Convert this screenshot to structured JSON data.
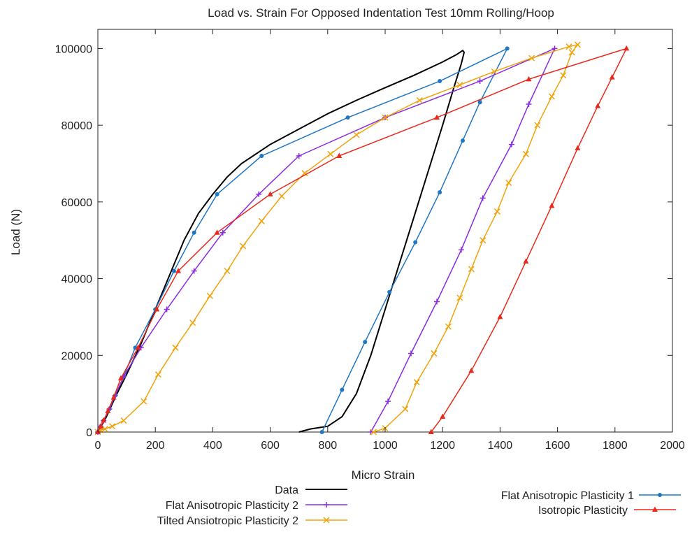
{
  "chart_data": {
    "type": "line",
    "title": "Load vs. Strain For Opposed Indentation Test 10mm Rolling/Hoop",
    "xlabel": "Micro Strain",
    "ylabel": "Load (N)",
    "xlim": [
      0,
      2000
    ],
    "ylim": [
      0,
      105000
    ],
    "xticks": [
      0,
      200,
      400,
      600,
      800,
      1000,
      1200,
      1400,
      1600,
      1800,
      2000
    ],
    "yticks": [
      0,
      20000,
      40000,
      60000,
      80000,
      100000
    ],
    "grid": false,
    "legend_position": "below plot, two columns",
    "series": [
      {
        "name": "Data",
        "color": "#000000",
        "marker": "none",
        "points": [
          [
            0,
            0
          ],
          [
            30,
            4000
          ],
          [
            60,
            9000
          ],
          [
            100,
            15000
          ],
          [
            150,
            23000
          ],
          [
            200,
            32000
          ],
          [
            250,
            41000
          ],
          [
            300,
            50000
          ],
          [
            350,
            57000
          ],
          [
            400,
            62000
          ],
          [
            450,
            66500
          ],
          [
            500,
            70000
          ],
          [
            600,
            75000
          ],
          [
            700,
            79000
          ],
          [
            800,
            83000
          ],
          [
            900,
            86500
          ],
          [
            1000,
            89800
          ],
          [
            1100,
            93000
          ],
          [
            1200,
            96500
          ],
          [
            1250,
            98500
          ],
          [
            1270,
            99500
          ],
          [
            1275,
            99000
          ],
          [
            1265,
            96000
          ],
          [
            1240,
            90000
          ],
          [
            1200,
            80000
          ],
          [
            1150,
            68000
          ],
          [
            1100,
            56000
          ],
          [
            1050,
            44000
          ],
          [
            1000,
            32000
          ],
          [
            950,
            20000
          ],
          [
            900,
            10000
          ],
          [
            850,
            4000
          ],
          [
            800,
            1500
          ],
          [
            740,
            800
          ],
          [
            700,
            0
          ]
        ]
      },
      {
        "name": "Flat Anisotropic Plasticity 1",
        "color": "#1f77c4",
        "marker": "dot",
        "points": [
          [
            0,
            0
          ],
          [
            10,
            1500
          ],
          [
            20,
            3000
          ],
          [
            40,
            6000
          ],
          [
            60,
            9500
          ],
          [
            90,
            14500
          ],
          [
            130,
            22000
          ],
          [
            200,
            32000
          ],
          [
            265,
            42000
          ],
          [
            335,
            52000
          ],
          [
            415,
            62000
          ],
          [
            570,
            72000
          ],
          [
            870,
            82000
          ],
          [
            1190,
            91500
          ],
          [
            1425,
            100000
          ],
          [
            1330,
            86000
          ],
          [
            1270,
            76000
          ],
          [
            1190,
            62500
          ],
          [
            1105,
            49500
          ],
          [
            1015,
            36500
          ],
          [
            930,
            23500
          ],
          [
            850,
            11000
          ],
          [
            780,
            0
          ]
        ]
      },
      {
        "name": "Flat Anisotropic Plasticity 2",
        "color": "#8a2be2",
        "marker": "plus",
        "points": [
          [
            0,
            0
          ],
          [
            10,
            1500
          ],
          [
            20,
            3000
          ],
          [
            40,
            6000
          ],
          [
            60,
            9500
          ],
          [
            90,
            14500
          ],
          [
            150,
            22000
          ],
          [
            240,
            32000
          ],
          [
            335,
            42000
          ],
          [
            435,
            52000
          ],
          [
            560,
            62000
          ],
          [
            700,
            72000
          ],
          [
            1000,
            82000
          ],
          [
            1330,
            91500
          ],
          [
            1590,
            100000
          ],
          [
            1500,
            85500
          ],
          [
            1440,
            75000
          ],
          [
            1340,
            61000
          ],
          [
            1265,
            47500
          ],
          [
            1180,
            34000
          ],
          [
            1090,
            20500
          ],
          [
            1010,
            8000
          ],
          [
            950,
            0
          ]
        ]
      },
      {
        "name": "Tilted Ansiotropic Plasticity 2",
        "color": "#f0a30a",
        "marker": "cross",
        "points": [
          [
            0,
            0
          ],
          [
            10,
            500
          ],
          [
            25,
            800
          ],
          [
            50,
            1500
          ],
          [
            90,
            3000
          ],
          [
            160,
            8000
          ],
          [
            210,
            15000
          ],
          [
            270,
            22000
          ],
          [
            330,
            28500
          ],
          [
            390,
            35500
          ],
          [
            450,
            42000
          ],
          [
            505,
            48500
          ],
          [
            570,
            55000
          ],
          [
            640,
            61500
          ],
          [
            720,
            67500
          ],
          [
            810,
            72500
          ],
          [
            900,
            77500
          ],
          [
            1000,
            82000
          ],
          [
            1120,
            86500
          ],
          [
            1260,
            90500
          ],
          [
            1380,
            94000
          ],
          [
            1510,
            97500
          ],
          [
            1640,
            100500
          ],
          [
            1670,
            101000
          ],
          [
            1650,
            99000
          ],
          [
            1620,
            93000
          ],
          [
            1580,
            87500
          ],
          [
            1530,
            80000
          ],
          [
            1490,
            72500
          ],
          [
            1430,
            65000
          ],
          [
            1390,
            57500
          ],
          [
            1340,
            50000
          ],
          [
            1300,
            42500
          ],
          [
            1260,
            35000
          ],
          [
            1220,
            27500
          ],
          [
            1170,
            20500
          ],
          [
            1110,
            13000
          ],
          [
            1070,
            6000
          ],
          [
            1000,
            1000
          ],
          [
            960,
            0
          ]
        ]
      },
      {
        "name": "Isotropic Plasticity",
        "color": "#e8291c",
        "marker": "triangle",
        "points": [
          [
            0,
            0
          ],
          [
            10,
            1500
          ],
          [
            20,
            3000
          ],
          [
            35,
            5500
          ],
          [
            55,
            9000
          ],
          [
            80,
            14000
          ],
          [
            140,
            22000
          ],
          [
            205,
            32000
          ],
          [
            280,
            42000
          ],
          [
            415,
            52000
          ],
          [
            600,
            62000
          ],
          [
            840,
            72000
          ],
          [
            1180,
            82000
          ],
          [
            1500,
            92000
          ],
          [
            1840,
            100000
          ],
          [
            1790,
            92500
          ],
          [
            1740,
            85000
          ],
          [
            1670,
            74000
          ],
          [
            1580,
            59000
          ],
          [
            1490,
            44500
          ],
          [
            1400,
            30000
          ],
          [
            1300,
            16000
          ],
          [
            1200,
            4000
          ],
          [
            1160,
            0
          ]
        ]
      }
    ]
  }
}
